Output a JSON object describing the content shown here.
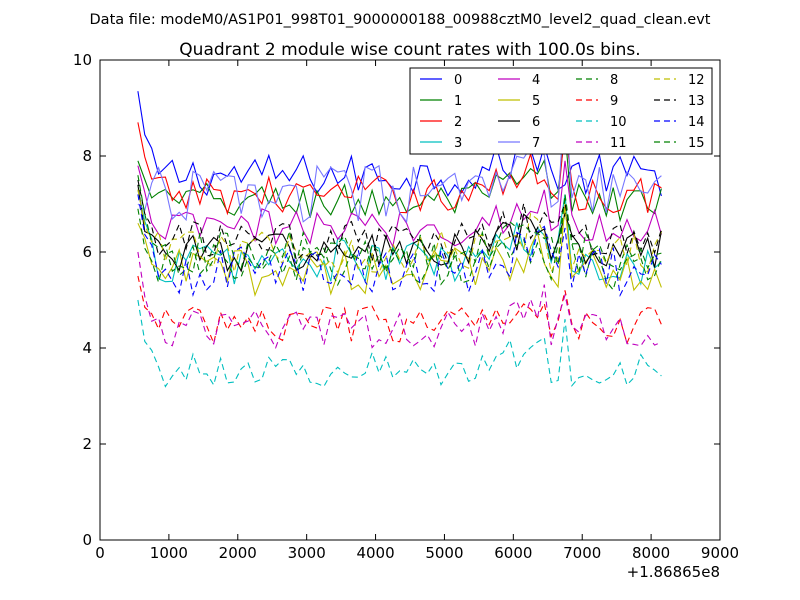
{
  "chart_data": {
    "type": "line",
    "suptitle": "Data file: modeM0/AS1P01_998T01_9000000188_00988cztM0_level2_quad_clean.evt",
    "title": "Quadrant 2 module wise count rates with 100.0s bins.",
    "xlabel": "",
    "ylabel": "",
    "x_offset_label": "+1.86865e8",
    "xlim": [
      0,
      9000
    ],
    "ylim": [
      0,
      10
    ],
    "xticks": [
      0,
      1000,
      2000,
      3000,
      4000,
      5000,
      6000,
      7000,
      8000,
      9000
    ],
    "yticks": [
      0,
      2,
      4,
      6,
      8,
      10
    ],
    "legend_position": "top-right",
    "x_range": [
      550,
      8200
    ],
    "bin_step": 100,
    "gap_x": [
      6500,
      6600,
      6700
    ],
    "series": [
      {
        "name": "0",
        "color": "#0000ff",
        "dash": "solid",
        "base": 7.6,
        "start": 9.35,
        "noise": 0.22,
        "peak": 7.4
      },
      {
        "name": "1",
        "color": "#008000",
        "dash": "solid",
        "base": 7.05,
        "start": 7.9,
        "noise": 0.2,
        "peak": 8.5
      },
      {
        "name": "2",
        "color": "#ff0000",
        "dash": "solid",
        "base": 7.2,
        "start": 8.7,
        "noise": 0.2,
        "peak": 8.6
      },
      {
        "name": "3",
        "color": "#00bfbf",
        "dash": "solid",
        "base": 5.8,
        "start": 7.3,
        "noise": 0.25,
        "peak": 7.2
      },
      {
        "name": "4",
        "color": "#bf00bf",
        "dash": "solid",
        "base": 6.5,
        "start": 7.8,
        "noise": 0.2,
        "peak": 7.9
      },
      {
        "name": "5",
        "color": "#bfbf00",
        "dash": "solid",
        "base": 5.6,
        "start": 6.6,
        "noise": 0.25,
        "peak": 7.0
      },
      {
        "name": "6",
        "color": "#000000",
        "dash": "solid",
        "base": 6.0,
        "start": 7.4,
        "noise": 0.22,
        "peak": 6.8
      },
      {
        "name": "7",
        "color": "#7777ff",
        "dash": "solid",
        "base": 7.2,
        "start": 7.0,
        "noise": 0.3,
        "peak": 9.2
      },
      {
        "name": "8",
        "color": "#008000",
        "dash": "dashed",
        "base": 5.7,
        "start": 6.9,
        "noise": 0.25,
        "peak": 7.1
      },
      {
        "name": "9",
        "color": "#ff0000",
        "dash": "dashed",
        "base": 4.5,
        "start": 5.5,
        "noise": 0.2,
        "peak": 5.2
      },
      {
        "name": "10",
        "color": "#00bfbf",
        "dash": "dashed",
        "base": 3.55,
        "start": 5.0,
        "noise": 0.18,
        "peak": 4.6
      },
      {
        "name": "11",
        "color": "#bf00bf",
        "dash": "dashed",
        "base": 4.4,
        "start": 6.0,
        "noise": 0.2,
        "peak": 5.1
      },
      {
        "name": "12",
        "color": "#bfbf00",
        "dash": "dashed",
        "base": 6.0,
        "start": 7.3,
        "noise": 0.22,
        "peak": 6.9
      },
      {
        "name": "13",
        "color": "#000000",
        "dash": "dashed",
        "base": 6.2,
        "start": 7.5,
        "noise": 0.22,
        "peak": 7.0
      },
      {
        "name": "14",
        "color": "#0000ff",
        "dash": "dashed",
        "base": 5.6,
        "start": 7.2,
        "noise": 0.25,
        "peak": 6.5
      },
      {
        "name": "15",
        "color": "#008000",
        "dash": "dashed",
        "base": 6.0,
        "start": 7.6,
        "noise": 0.22,
        "peak": 7.2
      }
    ]
  }
}
